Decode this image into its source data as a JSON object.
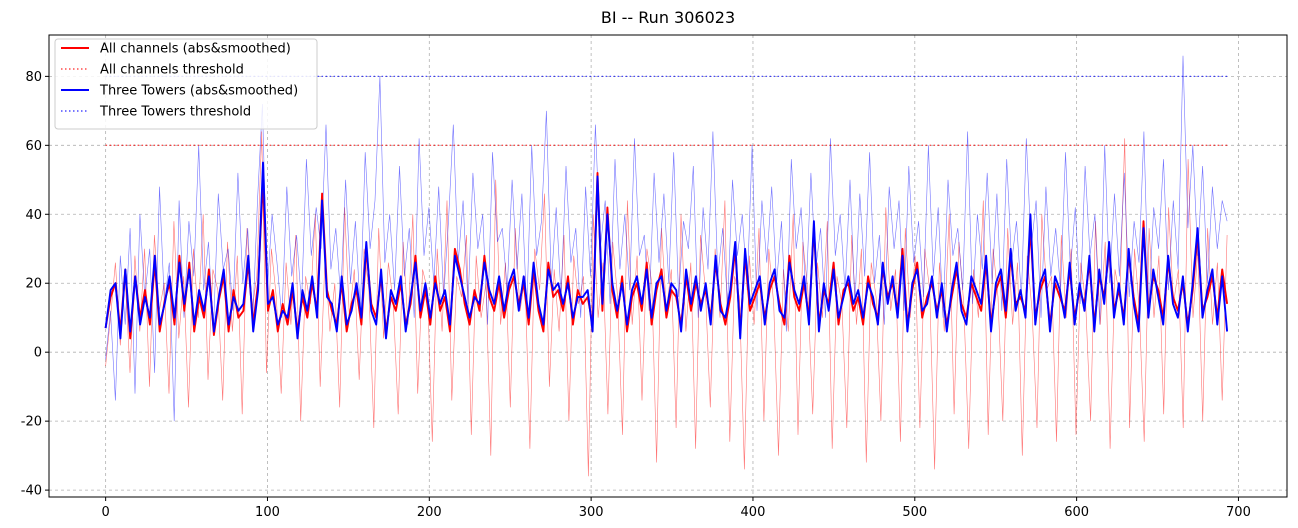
{
  "chart_data": {
    "type": "line",
    "title": "BI -- Run 306023",
    "xlabel": "",
    "ylabel": "",
    "xlim": [
      -35,
      730
    ],
    "ylim": [
      -42,
      92
    ],
    "x_ticks": [
      0,
      100,
      200,
      300,
      400,
      500,
      600,
      700
    ],
    "y_ticks": [
      -40,
      -20,
      0,
      20,
      40,
      60,
      80
    ],
    "grid": true,
    "legend_position": "top-left",
    "x_range": [
      0,
      693
    ],
    "series": [
      {
        "name": "All channels (abs&smoothed)",
        "color": "#ff0000",
        "style": "solid",
        "values": [
          7,
          16,
          20,
          6,
          24,
          4,
          22,
          10,
          18,
          8,
          26,
          6,
          15,
          20,
          8,
          28,
          12,
          26,
          6,
          16,
          10,
          24,
          5,
          15,
          22,
          6,
          18,
          10,
          12,
          26,
          8,
          20,
          50,
          12,
          18,
          6,
          14,
          8,
          18,
          6,
          16,
          10,
          20,
          12,
          46,
          18,
          12,
          8,
          20,
          6,
          14,
          18,
          8,
          30,
          14,
          10,
          22,
          6,
          16,
          12,
          20,
          8,
          14,
          28,
          10,
          18,
          8,
          22,
          12,
          16,
          6,
          30,
          24,
          14,
          8,
          18,
          12,
          28,
          16,
          12,
          20,
          10,
          18,
          22,
          14,
          20,
          8,
          24,
          12,
          6,
          26,
          16,
          18,
          12,
          22,
          8,
          18,
          14,
          16,
          8,
          52,
          12,
          42,
          18,
          10,
          22,
          6,
          16,
          20,
          12,
          26,
          8,
          18,
          24,
          10,
          18,
          16,
          8,
          22,
          12,
          20,
          14,
          18,
          10,
          26,
          14,
          8,
          16,
          30,
          6,
          28,
          12,
          16,
          20,
          10,
          18,
          22,
          14,
          8,
          28,
          16,
          12,
          20,
          10,
          36,
          8,
          18,
          14,
          26,
          8,
          18,
          20,
          12,
          16,
          8,
          22,
          14,
          10,
          24,
          16,
          20,
          12,
          30,
          8,
          18,
          26,
          10,
          16,
          20,
          12,
          18,
          8,
          16,
          24,
          14,
          10,
          20,
          16,
          12,
          26,
          8,
          18,
          22,
          10,
          28,
          14,
          16,
          12,
          36,
          10,
          18,
          22,
          8,
          20,
          16,
          12,
          24,
          10,
          18,
          14,
          26,
          8,
          22,
          16,
          30,
          12,
          18,
          10,
          28,
          16,
          8,
          38,
          12,
          22,
          18,
          10,
          26,
          16,
          12,
          20,
          8,
          18,
          34,
          12,
          16,
          22,
          10,
          24,
          14
        ]
      },
      {
        "name": "All channels threshold",
        "color": "#ff0000",
        "style": "dotted",
        "values": [
          60,
          60
        ]
      },
      {
        "name": "Three Towers (abs&smoothed)",
        "color": "#0000ff",
        "style": "solid",
        "values": [
          7,
          18,
          20,
          4,
          24,
          6,
          22,
          8,
          16,
          10,
          28,
          8,
          14,
          22,
          10,
          26,
          14,
          24,
          8,
          18,
          12,
          22,
          6,
          16,
          24,
          8,
          16,
          12,
          14,
          28,
          6,
          18,
          55,
          14,
          16,
          8,
          12,
          10,
          20,
          4,
          18,
          12,
          22,
          10,
          44,
          16,
          14,
          6,
          22,
          8,
          12,
          20,
          10,
          32,
          12,
          8,
          24,
          4,
          18,
          14,
          22,
          6,
          16,
          26,
          12,
          20,
          10,
          20,
          14,
          18,
          8,
          28,
          22,
          16,
          10,
          16,
          14,
          26,
          18,
          14,
          22,
          12,
          20,
          24,
          12,
          22,
          10,
          26,
          14,
          8,
          24,
          18,
          20,
          14,
          20,
          10,
          16,
          16,
          18,
          6,
          51,
          14,
          40,
          20,
          12,
          20,
          8,
          18,
          22,
          14,
          24,
          10,
          20,
          22,
          12,
          20,
          18,
          6,
          24,
          14,
          22,
          12,
          20,
          8,
          28,
          12,
          10,
          18,
          32,
          4,
          30,
          14,
          18,
          22,
          8,
          20,
          24,
          12,
          10,
          26,
          18,
          14,
          22,
          8,
          38,
          6,
          20,
          12,
          24,
          10,
          16,
          22,
          14,
          18,
          10,
          20,
          16,
          8,
          26,
          14,
          22,
          10,
          28,
          6,
          20,
          24,
          12,
          14,
          22,
          10,
          20,
          6,
          18,
          26,
          12,
          8,
          22,
          18,
          14,
          28,
          6,
          20,
          24,
          12,
          30,
          12,
          18,
          10,
          40,
          8,
          20,
          24,
          6,
          22,
          18,
          10,
          26,
          8,
          20,
          12,
          28,
          6,
          24,
          14,
          32,
          10,
          20,
          8,
          30,
          14,
          6,
          36,
          10,
          24,
          16,
          8,
          28,
          14,
          10,
          22,
          6,
          20,
          36,
          10,
          18,
          24,
          8,
          22,
          6
        ]
      },
      {
        "name": "Three Towers threshold",
        "color": "#0000ff",
        "style": "dotted",
        "values": [
          80,
          80
        ]
      }
    ],
    "raw_series": [
      {
        "color": "#ff0000",
        "values": [
          -4,
          10,
          26,
          2,
          22,
          -6,
          28,
          6,
          30,
          -10,
          34,
          12,
          20,
          -12,
          38,
          4,
          22,
          -16,
          30,
          10,
          40,
          -8,
          24,
          18,
          -14,
          32,
          6,
          28,
          -18,
          36,
          12,
          22,
          64,
          -6,
          30,
          16,
          -12,
          26,
          8,
          34,
          -20,
          22,
          14,
          40,
          -10,
          28,
          6,
          20,
          -16,
          42,
          10,
          24,
          -8,
          30,
          18,
          -22,
          36,
          4,
          26,
          14,
          -18,
          32,
          8,
          40,
          -12,
          24,
          18,
          -26,
          30,
          6,
          44,
          -14,
          22,
          16,
          34,
          -24,
          28,
          10,
          20,
          -30,
          50,
          8,
          26,
          -16,
          36,
          12,
          22,
          -28,
          30,
          18,
          46,
          -10,
          24,
          6,
          34,
          -20,
          28,
          14,
          22,
          -36,
          40,
          10,
          26,
          -18,
          32,
          16,
          -24,
          44,
          8,
          28,
          -14,
          30,
          20,
          -32,
          36,
          12,
          24,
          -22,
          40,
          6,
          26,
          -28,
          34,
          18,
          -16,
          30,
          10,
          44,
          -26,
          22,
          16,
          -34,
          28,
          8,
          36,
          -20,
          30,
          14,
          -30,
          24,
          6,
          40,
          -24,
          32,
          18,
          -18,
          26,
          10,
          38,
          -28,
          22,
          14,
          -22,
          34,
          8,
          30,
          -32,
          26,
          16,
          -20,
          42,
          12,
          24,
          -26,
          36,
          10,
          28,
          -22,
          30,
          18,
          -34,
          26,
          6,
          40,
          -18,
          32,
          14,
          -28,
          24,
          10,
          44,
          -24,
          30,
          16,
          -20,
          36,
          8,
          26,
          -30,
          28,
          12,
          -22,
          40,
          18,
          22,
          -26,
          34,
          10,
          30,
          -24,
          26,
          14,
          -20,
          38,
          8,
          32,
          -28,
          24,
          16,
          62,
          -22,
          30,
          12,
          -26,
          36,
          10,
          28,
          -18,
          42,
          14,
          24,
          -22,
          56,
          10,
          30,
          -20,
          36,
          8,
          26,
          -14,
          34
        ]
      },
      {
        "color": "#0000ff",
        "values": [
          -2,
          12,
          -14,
          28,
          8,
          36,
          -12,
          40,
          16,
          30,
          -6,
          48,
          14,
          26,
          -20,
          44,
          10,
          38,
          22,
          60,
          18,
          32,
          6,
          46,
          24,
          30,
          12,
          52,
          20,
          36,
          8,
          44,
          72,
          18,
          40,
          26,
          10,
          48,
          22,
          34,
          14,
          56,
          28,
          42,
          30,
          66,
          24,
          36,
          16,
          50,
          20,
          38,
          12,
          58,
          30,
          44,
          80,
          26,
          40,
          18,
          54,
          22,
          36,
          10,
          62,
          28,
          42,
          20,
          48,
          16,
          38,
          66,
          26,
          44,
          14,
          52,
          30,
          40,
          8,
          58,
          32,
          36,
          18,
          50,
          24,
          46,
          12,
          60,
          28,
          38,
          70,
          20,
          42,
          16,
          54,
          26,
          36,
          10,
          48,
          22,
          66,
          30,
          44,
          14,
          56,
          24,
          40,
          18,
          62,
          28,
          34,
          12,
          52,
          26,
          46,
          20,
          58,
          16,
          38,
          30,
          54,
          10,
          42,
          24,
          64,
          22,
          36,
          14,
          50,
          28,
          40,
          18,
          60,
          12,
          44,
          26,
          48,
          20,
          38,
          6,
          56,
          30,
          42,
          16,
          52,
          24,
          36,
          10,
          62,
          28,
          40,
          18,
          50,
          14,
          46,
          22,
          58,
          20,
          34,
          8,
          48,
          30,
          44,
          12,
          54,
          26,
          38,
          16,
          60,
          22,
          42,
          10,
          50,
          28,
          36,
          18,
          64,
          14,
          40,
          24,
          52,
          20,
          46,
          12,
          56,
          26,
          38,
          16,
          62,
          30,
          44,
          10,
          48,
          22,
          36,
          18,
          58,
          24,
          42,
          14,
          54,
          28,
          40,
          8,
          60,
          20,
          46,
          22,
          52,
          16,
          38,
          26,
          64,
          12,
          42,
          30,
          56,
          18,
          44,
          24,
          86,
          36,
          60,
          28,
          54,
          20,
          48,
          30,
          44,
          38
        ]
      }
    ]
  }
}
